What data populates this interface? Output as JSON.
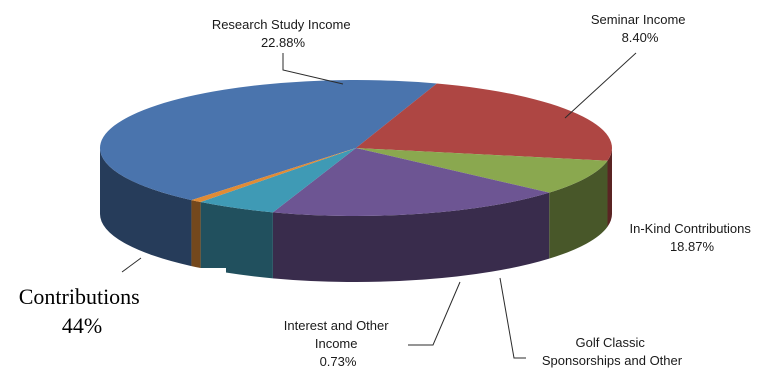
{
  "chart_data": {
    "type": "pie",
    "three_d": true,
    "title": "",
    "slices": [
      {
        "label": "Contributions",
        "value_text": "44%",
        "value": 44.0,
        "color": "#4a74ad"
      },
      {
        "label": "Research Study Income",
        "value_text": "22.88%",
        "value": 22.88,
        "color": "#ae4643"
      },
      {
        "label": "Seminar Income",
        "value_text": "8.40%",
        "value": 8.4,
        "color": "#8aa84f"
      },
      {
        "label": "In-Kind Contributions",
        "value_text": "18.87%",
        "value": 18.87,
        "color": "#6d5593"
      },
      {
        "label": "Golf Classic Sponsorships and Other",
        "value_text": "",
        "value": 5.12,
        "color": "#3f9ab5"
      },
      {
        "label": "Interest and Other Income",
        "value_text": "0.73%",
        "value": 0.73,
        "color": "#e08b35"
      }
    ],
    "labels": {
      "research": [
        "Research Study Income",
        "22.88%"
      ],
      "seminar": [
        "Seminar Income",
        "8.40%"
      ],
      "inkind": [
        "In-Kind Contributions",
        "18.87%"
      ],
      "golf": [
        "Golf Classic",
        "Sponsorships and Other"
      ],
      "interest": [
        "Interest and Other",
        "Income",
        "0.73%"
      ],
      "contributions": [
        "Contributions",
        "44%"
      ]
    },
    "legend": "none",
    "grid": false
  }
}
